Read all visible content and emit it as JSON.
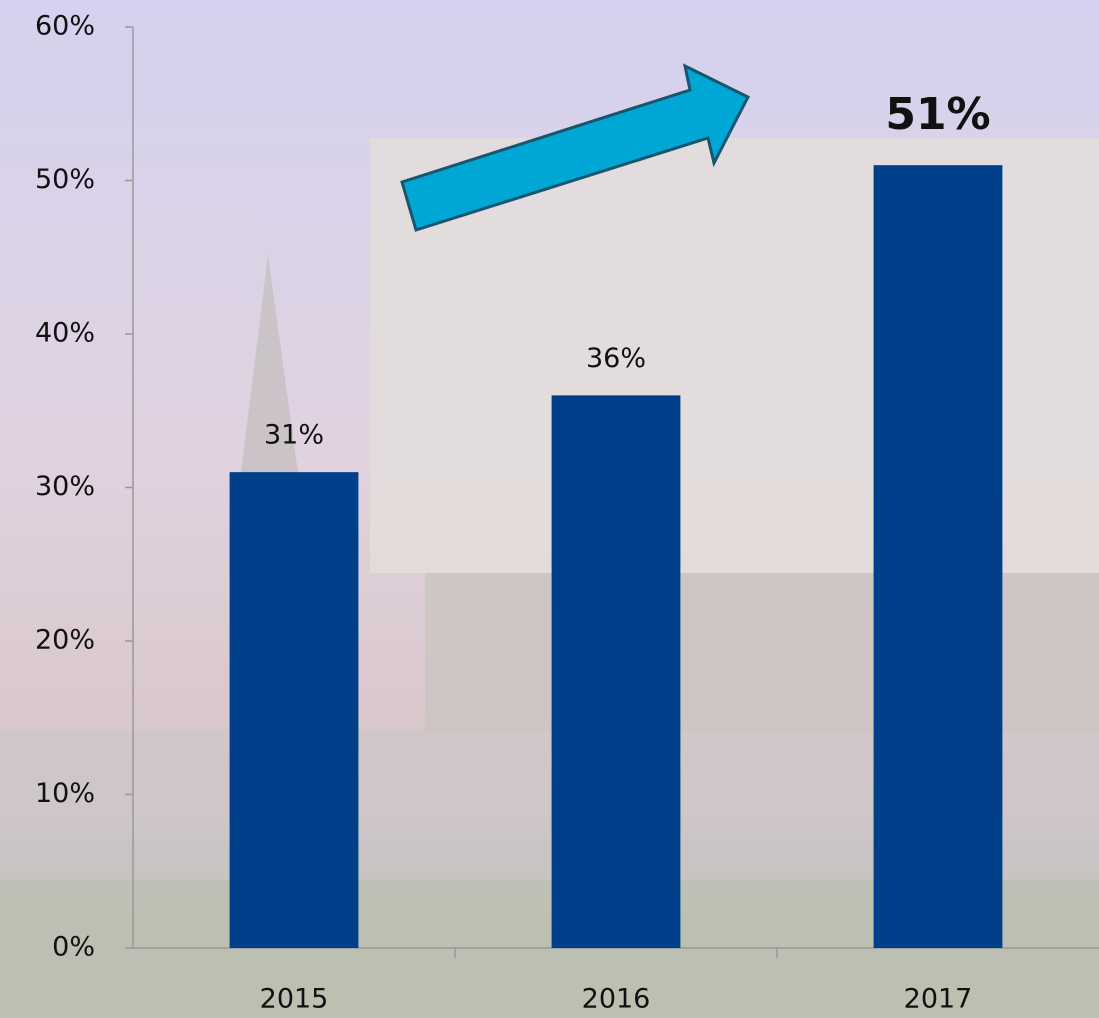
{
  "chart_data": {
    "type": "bar",
    "categories": [
      "2015",
      "2016",
      "2017"
    ],
    "values": [
      31,
      36,
      51
    ],
    "value_labels": [
      "31%",
      "36%",
      "51%"
    ],
    "bold_labels": [
      false,
      false,
      true
    ],
    "color": "#003f8a",
    "ylim": [
      0,
      60
    ],
    "yticks": [
      {
        "value": 0,
        "label": "0%"
      },
      {
        "value": 10,
        "label": "10%"
      },
      {
        "value": 20,
        "label": "20%"
      },
      {
        "value": 30,
        "label": "30%"
      },
      {
        "value": 40,
        "label": "40%"
      },
      {
        "value": 50,
        "label": "50%"
      },
      {
        "value": 60,
        "label": "60%"
      }
    ],
    "grid": false
  }
}
